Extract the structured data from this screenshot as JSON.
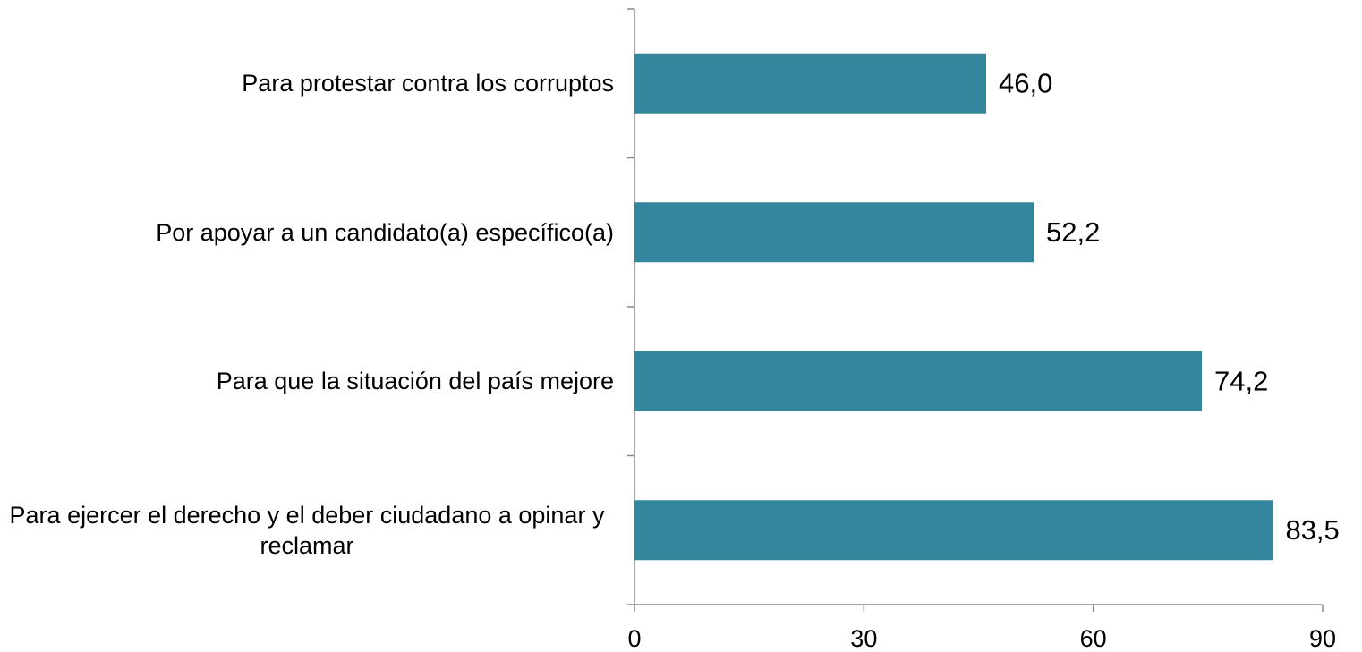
{
  "chart_data": {
    "type": "bar",
    "orientation": "horizontal",
    "categories": [
      "Para protestar contra los corruptos",
      "Por apoyar a un candidato(a) específico(a)",
      "Para que la situación del país mejore",
      "Para ejercer el derecho y el deber ciudadano a opinar y reclamar"
    ],
    "values": [
      46.0,
      52.2,
      74.2,
      83.5
    ],
    "value_labels": [
      "46,0",
      "52,2",
      "74,2",
      "83,5"
    ],
    "color": "#33869b",
    "xlim": [
      0,
      90
    ],
    "xticks": [
      0,
      30,
      60,
      90
    ],
    "grid": false
  }
}
